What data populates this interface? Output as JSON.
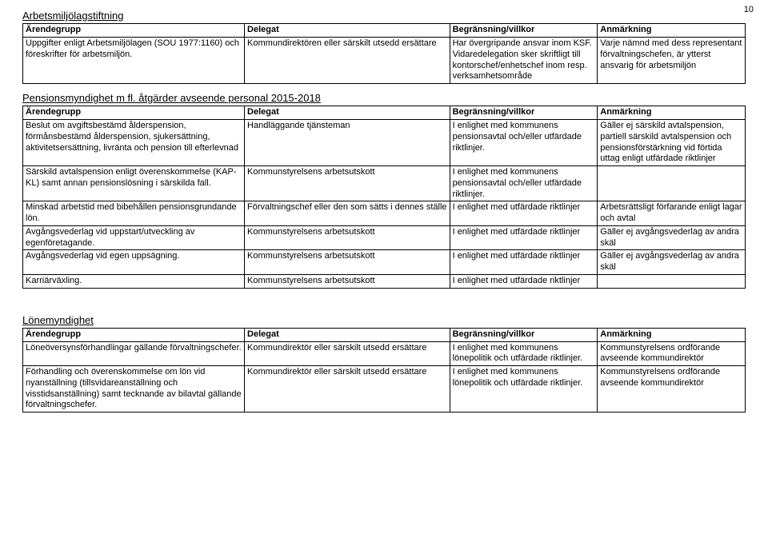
{
  "page_number": "10",
  "sections": [
    {
      "title": "Arbetsmiljölagstiftning",
      "headers": [
        "Ärendegrupp",
        "Delegat",
        "Begränsning/villkor",
        "Anmärkning"
      ],
      "rows": [
        {
          "c1": "Uppgifter enligt Arbetsmiljölagen (SOU 1977:1160) och föreskrifter för arbetsmiljön.",
          "c2": "Kommundirektören eller särskilt utsedd ersättare",
          "c3": "Har övergripande ansvar inom KSF. Vidaredelegation sker skriftligt till kontorschef/enhetschef inom resp. verksamhetsområde",
          "c4": "Varje nämnd med dess representant förvaltningschefen, är ytterst ansvarig för arbetsmiljön"
        }
      ]
    },
    {
      "title": "Pensionsmyndighet m fl. åtgärder avseende personal 2015-2018",
      "headers": [
        "Ärendegrupp",
        "Delegat",
        "Begränsning/villkor",
        "Anmärkning"
      ],
      "rows": [
        {
          "c1": "Beslut om avgiftsbestämd ålderspension, förmånsbestämd ålderspension, sjukersättning, aktivitetsersättning, livränta och pension till efterlevnad",
          "c2": "Handläggande tjänsteman",
          "c3": "I enlighet med kommunens pensionsavtal och/eller utfärdade riktlinjer.",
          "c4": "Gäller ej särskild avtalspension, partiell särskild avtalspension och pensionsförstärkning vid förtida uttag enligt utfärdade riktlinjer"
        },
        {
          "c1": "Särskild avtalspension enligt överenskommelse (KAP-KL) samt annan pensionslösning i särskilda fall.",
          "c2": "Kommunstyrelsens arbetsutskott",
          "c3": "I enlighet med kommunens pensionsavtal och/eller utfärdade riktlinjer.",
          "c4": ""
        },
        {
          "c1": "Minskad arbetstid med bibehållen pensionsgrundande lön.",
          "c2": "Förvaltningschef eller den som sätts i dennes ställe",
          "c3": "I enlighet med utfärdade riktlinjer",
          "c4": "Arbetsrättsligt förfarande enligt lagar och avtal"
        },
        {
          "c1": "Avgångsvederlag vid uppstart/utveckling av egenföretagande.",
          "c2": "Kommunstyrelsens arbetsutskott",
          "c3": "I enlighet med utfärdade riktlinjer",
          "c4": "Gäller ej avgångsvederlag av andra skäl"
        },
        {
          "c1": "Avgångsvederlag vid egen uppsägning.",
          "c2": "Kommunstyrelsens arbetsutskott",
          "c3": "I enlighet med utfärdade riktlinjer",
          "c4": "Gäller ej avgångsvederlag av andra skäl"
        },
        {
          "c1": "Karriärväxling.",
          "c2": "Kommunstyrelsens arbetsutskott",
          "c3": "I enlighet med utfärdade riktlinjer",
          "c4": ""
        }
      ]
    },
    {
      "title": "Lönemyndighet",
      "headers": [
        "Ärendegrupp",
        "Delegat",
        "Begränsning/villkor",
        "Anmärkning"
      ],
      "rows": [
        {
          "c1": "Löneöversynsförhandlingar gällande förvaltningschefer.",
          "c2": "Kommundirektör eller särskilt utsedd ersättare",
          "c3": "I enlighet med kommunens lönepolitik och utfärdade riktlinjer.",
          "c4": "Kommunstyrelsens ordförande avseende kommundirektör"
        },
        {
          "c1": "Förhandling och överenskommelse om lön vid nyanställning (tillsvidareanställning och visstidsanställning) samt tecknande av bilavtal gällande förvaltningschefer.",
          "c2": "Kommundirektör eller särskilt utsedd ersättare",
          "c3": "I enlighet med kommunens lönepolitik och utfärdade riktlinjer.",
          "c4": "Kommunstyrelsens ordförande avseende kommundirektör"
        }
      ]
    }
  ]
}
